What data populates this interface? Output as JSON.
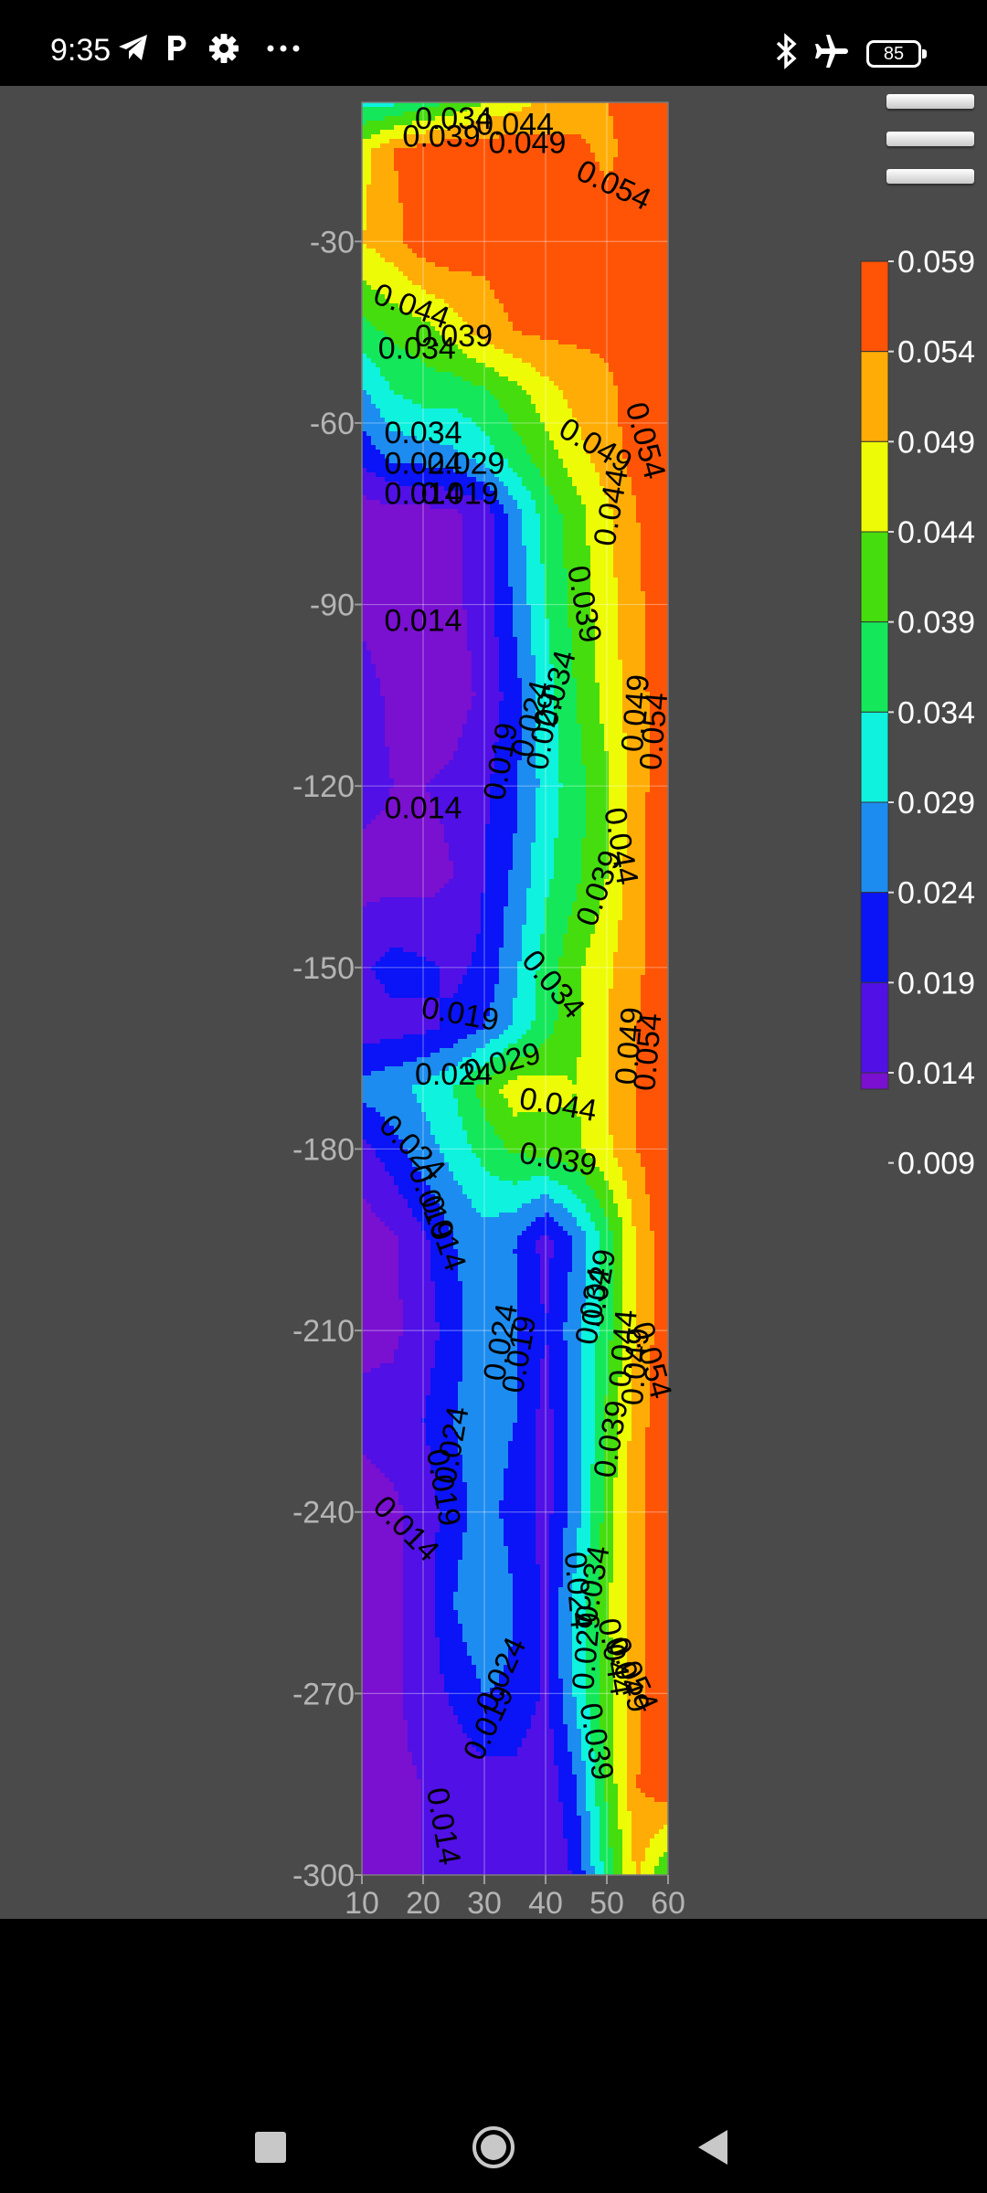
{
  "status_bar": {
    "time": "9:35",
    "battery_level": "85",
    "left_icons": [
      "telegram-icon",
      "parking-icon",
      "gear-icon",
      "more-dots-icon"
    ],
    "right_icons": [
      "bluetooth-icon",
      "airplane-icon",
      "battery-icon"
    ]
  },
  "menu": {
    "icon": "hamburger-menu-icon"
  },
  "navigation_bar": {
    "icons": [
      "recent-apps-square-icon",
      "home-circle-icon",
      "back-triangle-icon"
    ]
  },
  "chart_data": {
    "type": "heatmap",
    "subtype": "filled-contour",
    "title": "",
    "xlabel": "",
    "ylabel": "",
    "xlim": [
      10,
      60
    ],
    "ylim": [
      -300,
      -7
    ],
    "x_ticks": [
      "10",
      "20",
      "30",
      "40",
      "50",
      "60"
    ],
    "y_ticks": [
      "-30",
      "-60",
      "-90",
      "-120",
      "-150",
      "-180",
      "-210",
      "-240",
      "-270",
      "-300"
    ],
    "grid": true,
    "colorbar": {
      "placement": "right",
      "levels": [
        0.009,
        0.014,
        0.019,
        0.024,
        0.029,
        0.034,
        0.039,
        0.044,
        0.049,
        0.054,
        0.059
      ],
      "labels": [
        "0.059",
        "0.054",
        "0.049",
        "0.044",
        "0.039",
        "0.034",
        "0.029",
        "0.024",
        "0.019",
        "0.014",
        "0.009"
      ],
      "colors": [
        "#7a10d0",
        "#5010e6",
        "#0a14f6",
        "#1d8cf0",
        "#0ef2de",
        "#14e85a",
        "#46dd0e",
        "#eefb06",
        "#ffad06",
        "#ff5406",
        "#ff1004"
      ]
    },
    "x": [
      10,
      15,
      20,
      25,
      30,
      35,
      40,
      45,
      50,
      55,
      60
    ],
    "rows": [
      {
        "y": -7,
        "values": [
          0.032,
          0.033,
          0.036,
          0.04,
          0.044,
          0.047,
          0.05,
          0.052,
          0.054,
          0.056,
          0.057
        ]
      },
      {
        "y": -15,
        "values": [
          0.047,
          0.054,
          0.057,
          0.058,
          0.058,
          0.057,
          0.056,
          0.055,
          0.053,
          0.056,
          0.058
        ]
      },
      {
        "y": -30,
        "values": [
          0.049,
          0.052,
          0.057,
          0.058,
          0.056,
          0.058,
          0.058,
          0.057,
          0.056,
          0.057,
          0.058
        ]
      },
      {
        "y": -45,
        "values": [
          0.037,
          0.04,
          0.042,
          0.046,
          0.051,
          0.054,
          0.055,
          0.055,
          0.055,
          0.057,
          0.058
        ]
      },
      {
        "y": -55,
        "values": [
          0.028,
          0.034,
          0.036,
          0.036,
          0.038,
          0.042,
          0.047,
          0.051,
          0.053,
          0.056,
          0.058
        ]
      },
      {
        "y": -65,
        "values": [
          0.021,
          0.026,
          0.027,
          0.028,
          0.032,
          0.037,
          0.042,
          0.047,
          0.052,
          0.056,
          0.058
        ]
      },
      {
        "y": -75,
        "values": [
          0.011,
          0.012,
          0.012,
          0.013,
          0.016,
          0.027,
          0.036,
          0.042,
          0.048,
          0.054,
          0.058
        ]
      },
      {
        "y": -90,
        "values": [
          0.013,
          0.011,
          0.012,
          0.013,
          0.016,
          0.025,
          0.034,
          0.041,
          0.047,
          0.053,
          0.058
        ]
      },
      {
        "y": -105,
        "values": [
          0.016,
          0.013,
          0.011,
          0.012,
          0.015,
          0.022,
          0.032,
          0.039,
          0.046,
          0.052,
          0.058
        ]
      },
      {
        "y": -120,
        "values": [
          0.016,
          0.014,
          0.014,
          0.015,
          0.018,
          0.023,
          0.031,
          0.037,
          0.043,
          0.052,
          0.058
        ]
      },
      {
        "y": -135,
        "values": [
          0.012,
          0.012,
          0.012,
          0.014,
          0.019,
          0.025,
          0.033,
          0.038,
          0.044,
          0.053,
          0.058
        ]
      },
      {
        "y": -150,
        "values": [
          0.018,
          0.021,
          0.02,
          0.018,
          0.02,
          0.028,
          0.036,
          0.043,
          0.048,
          0.053,
          0.058
        ]
      },
      {
        "y": -160,
        "values": [
          0.016,
          0.017,
          0.018,
          0.02,
          0.024,
          0.03,
          0.037,
          0.043,
          0.049,
          0.054,
          0.058
        ]
      },
      {
        "y": -170,
        "values": [
          0.026,
          0.028,
          0.03,
          0.034,
          0.041,
          0.047,
          0.046,
          0.044,
          0.049,
          0.054,
          0.058
        ]
      },
      {
        "y": -180,
        "values": [
          0.017,
          0.022,
          0.027,
          0.031,
          0.036,
          0.04,
          0.041,
          0.043,
          0.048,
          0.054,
          0.058
        ]
      },
      {
        "y": -195,
        "values": [
          0.011,
          0.013,
          0.018,
          0.024,
          0.027,
          0.024,
          0.017,
          0.025,
          0.036,
          0.05,
          0.058
        ]
      },
      {
        "y": -210,
        "values": [
          0.013,
          0.013,
          0.016,
          0.022,
          0.028,
          0.024,
          0.019,
          0.027,
          0.037,
          0.05,
          0.058
        ]
      },
      {
        "y": -225,
        "values": [
          0.015,
          0.016,
          0.019,
          0.024,
          0.027,
          0.024,
          0.017,
          0.026,
          0.04,
          0.052,
          0.058
        ]
      },
      {
        "y": -240,
        "values": [
          0.012,
          0.013,
          0.016,
          0.022,
          0.026,
          0.022,
          0.017,
          0.027,
          0.041,
          0.053,
          0.058
        ]
      },
      {
        "y": -255,
        "values": [
          0.012,
          0.013,
          0.016,
          0.024,
          0.029,
          0.024,
          0.018,
          0.031,
          0.043,
          0.053,
          0.058
        ]
      },
      {
        "y": -270,
        "values": [
          0.01,
          0.013,
          0.016,
          0.02,
          0.024,
          0.023,
          0.018,
          0.03,
          0.042,
          0.053,
          0.058
        ]
      },
      {
        "y": -285,
        "values": [
          0.012,
          0.013,
          0.014,
          0.015,
          0.017,
          0.017,
          0.015,
          0.024,
          0.04,
          0.054,
          0.058
        ]
      },
      {
        "y": -300,
        "values": [
          0.013,
          0.013,
          0.014,
          0.014,
          0.014,
          0.014,
          0.014,
          0.02,
          0.036,
          0.05,
          0.038
        ]
      }
    ],
    "contour_labels": [
      {
        "text": "0.034",
        "x": 25,
        "y": -10,
        "angle": 0
      },
      {
        "text": "0.044",
        "x": 35,
        "y": -11,
        "angle": 0
      },
      {
        "text": "0.039",
        "x": 23,
        "y": -13,
        "angle": 0
      },
      {
        "text": "0.049",
        "x": 37,
        "y": -14,
        "angle": 0
      },
      {
        "text": "0.054",
        "x": 51,
        "y": -21,
        "angle": 25
      },
      {
        "text": "0.044",
        "x": 18,
        "y": -41,
        "angle": 20
      },
      {
        "text": "0.039",
        "x": 25,
        "y": -46,
        "angle": 0
      },
      {
        "text": "0.034",
        "x": 19,
        "y": -48,
        "angle": 0
      },
      {
        "text": "0.034",
        "x": 20,
        "y": -62,
        "angle": 0
      },
      {
        "text": "0.029",
        "x": 27,
        "y": -67,
        "angle": 0
      },
      {
        "text": "0.024",
        "x": 20,
        "y": -67,
        "angle": 0
      },
      {
        "text": "0.019",
        "x": 26,
        "y": -72,
        "angle": 0
      },
      {
        "text": "0.014",
        "x": 20,
        "y": -72,
        "angle": 0
      },
      {
        "text": "0.049",
        "x": 48,
        "y": -64,
        "angle": 30
      },
      {
        "text": "0.054",
        "x": 56,
        "y": -63,
        "angle": 75
      },
      {
        "text": "0.044",
        "x": 51,
        "y": -74,
        "angle": -80
      },
      {
        "text": "0.039",
        "x": 46,
        "y": -90,
        "angle": 80
      },
      {
        "text": "0.014",
        "x": 20,
        "y": -93,
        "angle": 0
      },
      {
        "text": "0.034",
        "x": 42,
        "y": -104,
        "angle": -75
      },
      {
        "text": "0.024",
        "x": 38,
        "y": -109,
        "angle": -75
      },
      {
        "text": "0.029",
        "x": 40,
        "y": -111,
        "angle": -80
      },
      {
        "text": "0.019",
        "x": 33,
        "y": -116,
        "angle": -80
      },
      {
        "text": "0.049",
        "x": 55,
        "y": -108,
        "angle": -85
      },
      {
        "text": "0.054",
        "x": 58,
        "y": -111,
        "angle": -85
      },
      {
        "text": "0.014",
        "x": 20,
        "y": -124,
        "angle": 0
      },
      {
        "text": "0.044",
        "x": 52,
        "y": -130,
        "angle": 80
      },
      {
        "text": "0.039",
        "x": 49,
        "y": -137,
        "angle": -70
      },
      {
        "text": "0.034",
        "x": 41,
        "y": -153,
        "angle": 50
      },
      {
        "text": "0.019",
        "x": 26,
        "y": -158,
        "angle": 10
      },
      {
        "text": "0.049",
        "x": 54,
        "y": -163,
        "angle": -85
      },
      {
        "text": "0.054",
        "x": 57,
        "y": -164,
        "angle": -85
      },
      {
        "text": "0.029",
        "x": 33,
        "y": -166,
        "angle": -15
      },
      {
        "text": "0.024",
        "x": 25,
        "y": -168,
        "angle": 0
      },
      {
        "text": "0.044",
        "x": 42,
        "y": -173,
        "angle": 10
      },
      {
        "text": "0.039",
        "x": 42,
        "y": -182,
        "angle": 10
      },
      {
        "text": "0.024",
        "x": 18,
        "y": -180,
        "angle": 45
      },
      {
        "text": "0.019",
        "x": 21,
        "y": -189,
        "angle": 70
      },
      {
        "text": "0.014",
        "x": 23,
        "y": -194,
        "angle": 70
      },
      {
        "text": "0.029",
        "x": 49,
        "y": -203,
        "angle": -80
      },
      {
        "text": "0.034",
        "x": 48,
        "y": -206,
        "angle": -80
      },
      {
        "text": "0.044",
        "x": 53,
        "y": -213,
        "angle": -85
      },
      {
        "text": "0.049",
        "x": 55,
        "y": -216,
        "angle": -85
      },
      {
        "text": "0.054",
        "x": 57,
        "y": -215,
        "angle": 75
      },
      {
        "text": "0.024",
        "x": 33,
        "y": -212,
        "angle": -80
      },
      {
        "text": "0.019",
        "x": 36,
        "y": -214,
        "angle": -80
      },
      {
        "text": "0.024",
        "x": 25,
        "y": -229,
        "angle": -80
      },
      {
        "text": "0.019",
        "x": 23,
        "y": -236,
        "angle": 80
      },
      {
        "text": "0.039",
        "x": 51,
        "y": -228,
        "angle": -80
      },
      {
        "text": "0.014",
        "x": 17,
        "y": -243,
        "angle": 45
      },
      {
        "text": "0.024",
        "x": 45,
        "y": -253,
        "angle": 85
      },
      {
        "text": "0.034",
        "x": 48,
        "y": -252,
        "angle": -80
      },
      {
        "text": "0.029",
        "x": 47,
        "y": -263,
        "angle": -85
      },
      {
        "text": "0.044",
        "x": 51,
        "y": -264,
        "angle": 80
      },
      {
        "text": "0.049",
        "x": 53,
        "y": -267,
        "angle": 70
      },
      {
        "text": "0.054",
        "x": 54,
        "y": -267,
        "angle": 65
      },
      {
        "text": "0.024",
        "x": 33,
        "y": -267,
        "angle": -65
      },
      {
        "text": "0.019",
        "x": 31,
        "y": -275,
        "angle": -65
      },
      {
        "text": "0.039",
        "x": 48,
        "y": -278,
        "angle": 80
      },
      {
        "text": "0.014",
        "x": 23,
        "y": -292,
        "angle": 80
      }
    ]
  }
}
